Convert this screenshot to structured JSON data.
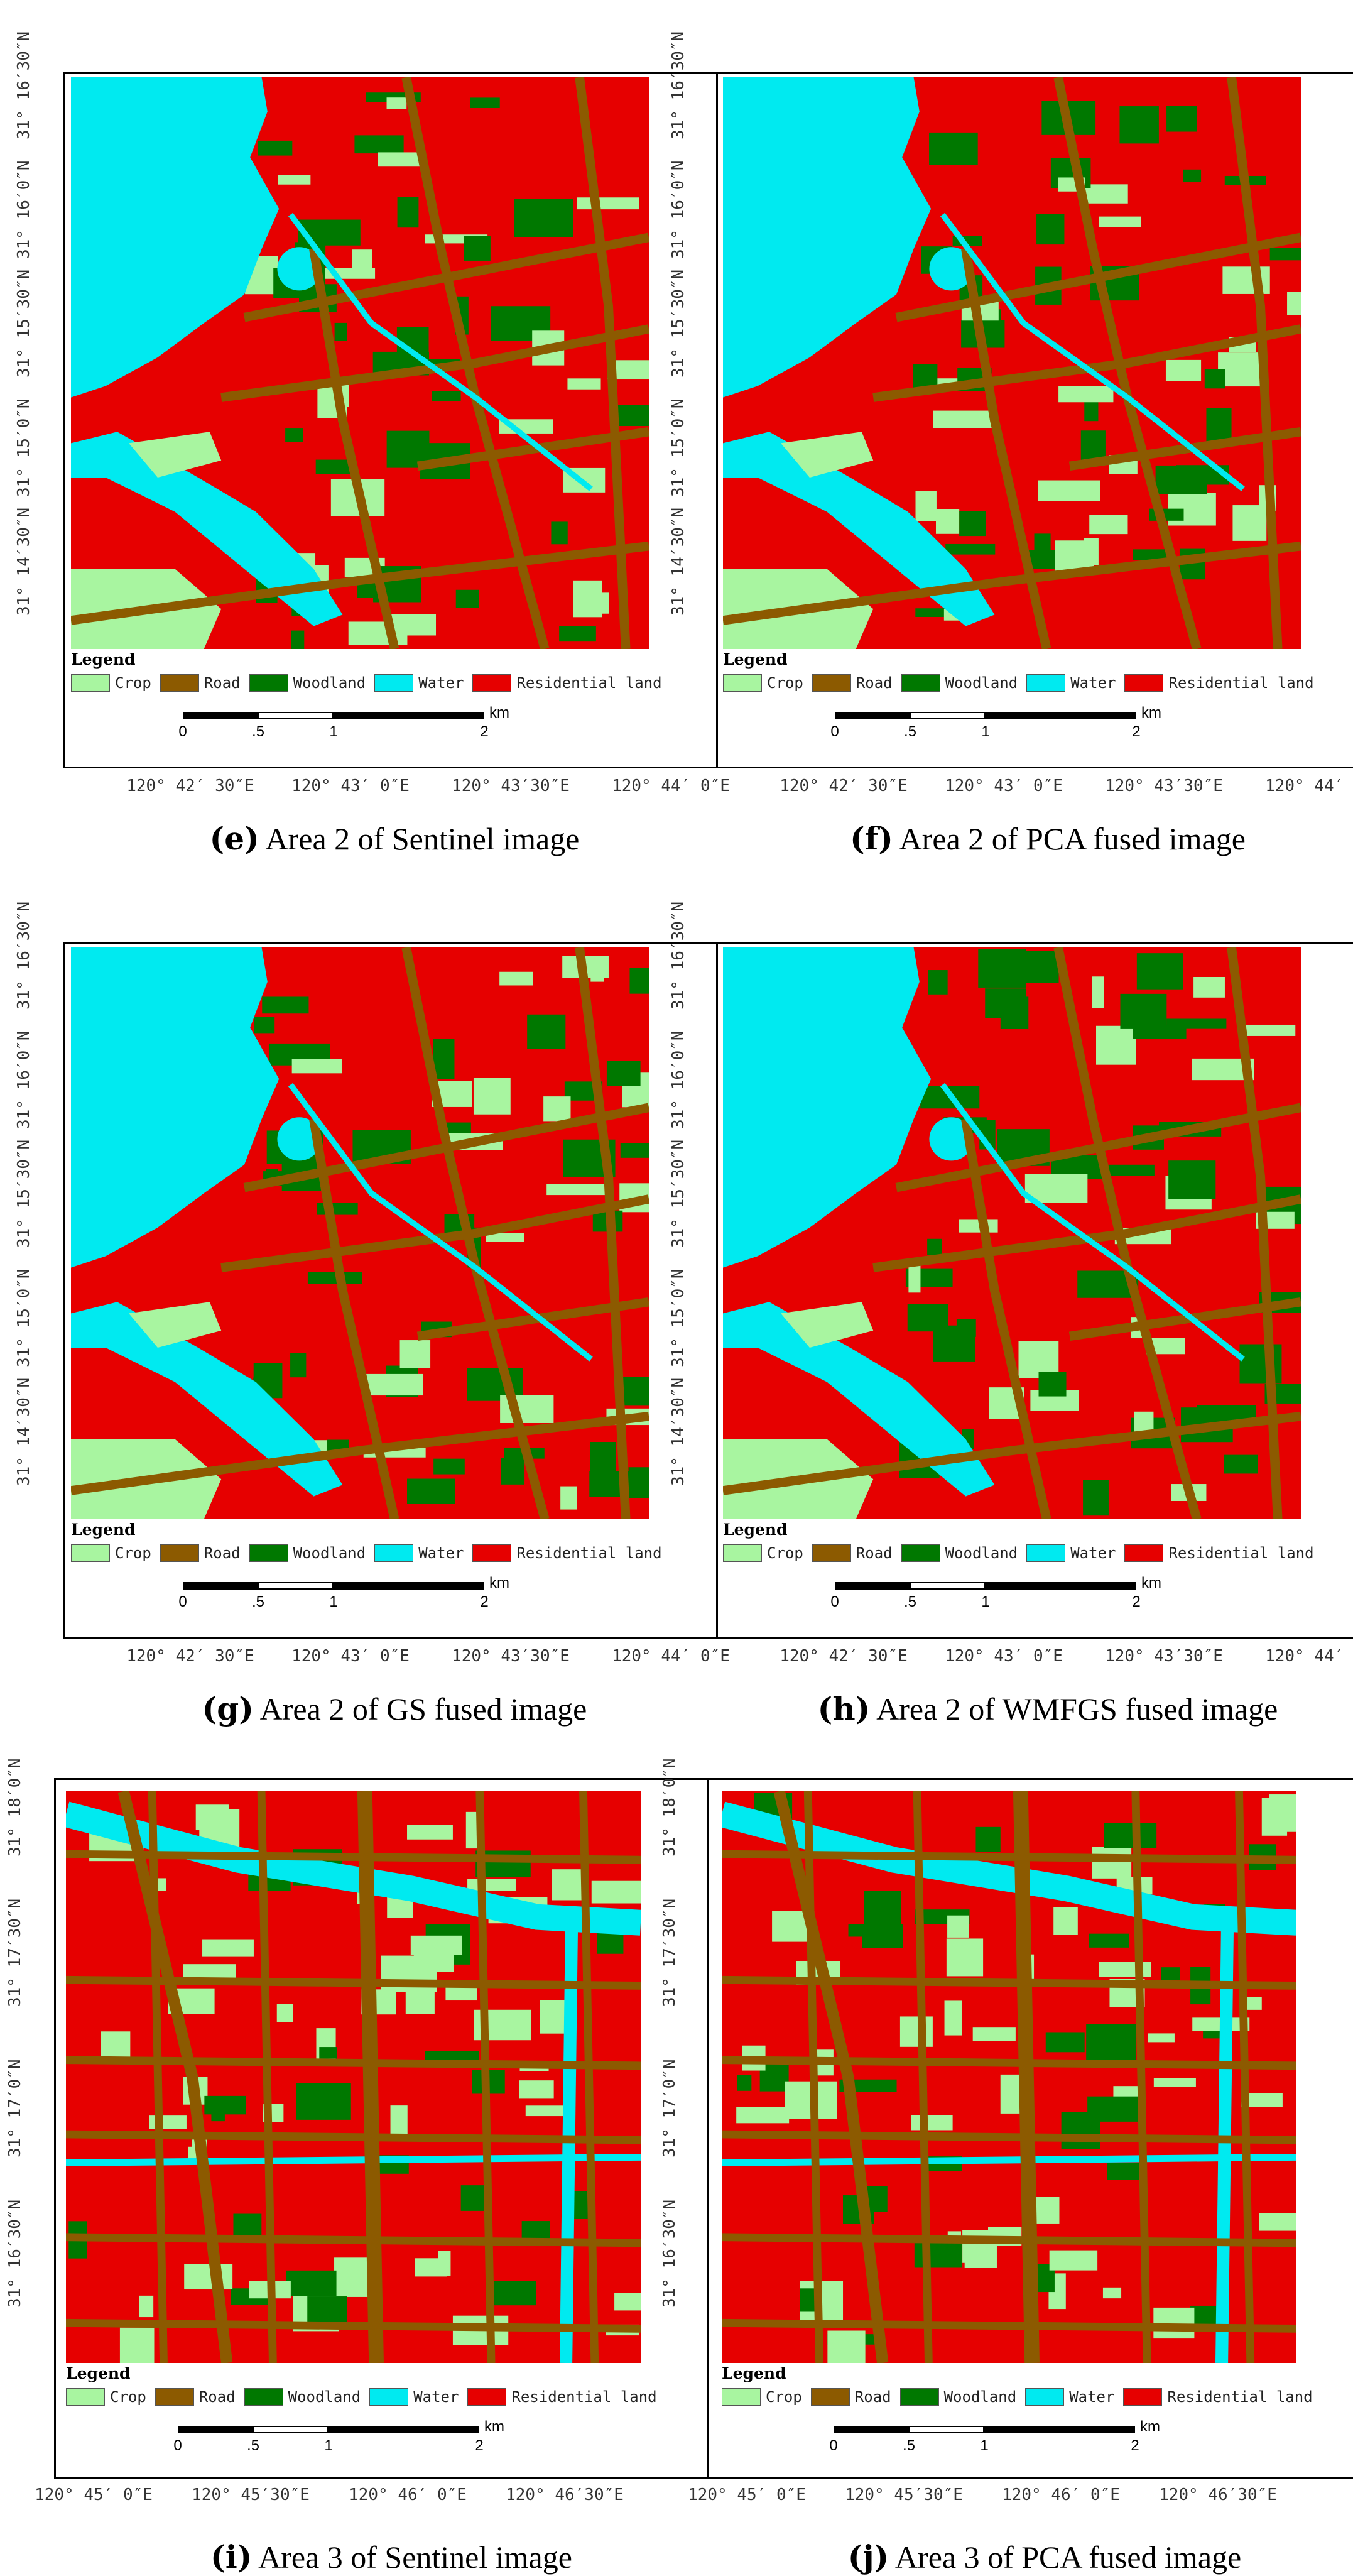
{
  "legend": {
    "title": "Legend",
    "classes": [
      {
        "name": "Crop",
        "color": "#a8f5a0"
      },
      {
        "name": "Road",
        "color": "#8c5a00"
      },
      {
        "name": "Woodland",
        "color": "#007800"
      },
      {
        "name": "Water",
        "color": "#00eaf0"
      },
      {
        "name": "Residential land",
        "color": "#e60000"
      }
    ]
  },
  "scale_bar": {
    "ticks": [
      "0",
      ".5",
      "1",
      "2"
    ],
    "unit": "km"
  },
  "area2": {
    "y_labels": [
      "31° 16′30″N",
      "31° 16′0″N",
      "31° 15′30″N",
      "31° 15′0″N",
      "31° 14′30″N"
    ],
    "x_labels": [
      "120° 42′ 30″E",
      "120° 43′ 0″E",
      "120° 43′30″E",
      "120° 44′ 0″E"
    ]
  },
  "area3": {
    "y_labels": [
      "31° 18′0″N",
      "31° 17′30″N",
      "31° 17′0″N",
      "31° 16′30″N"
    ],
    "x_labels": [
      "120° 45′ 0″E",
      "120° 45′30″E",
      "120° 46′ 0″E",
      "120° 46′30″E"
    ]
  },
  "panels": [
    {
      "letter": "e",
      "caption": "Area 2 of Sentinel image"
    },
    {
      "letter": "f",
      "caption": "Area 2 of PCA fused image"
    },
    {
      "letter": "g",
      "caption": "Area 2 of GS fused image"
    },
    {
      "letter": "h",
      "caption": "Area 2 of WMFGS fused image"
    },
    {
      "letter": "i",
      "caption": "Area 3 of Sentinel image"
    },
    {
      "letter": "j",
      "caption": "Area 3 of PCA fused image"
    }
  ]
}
